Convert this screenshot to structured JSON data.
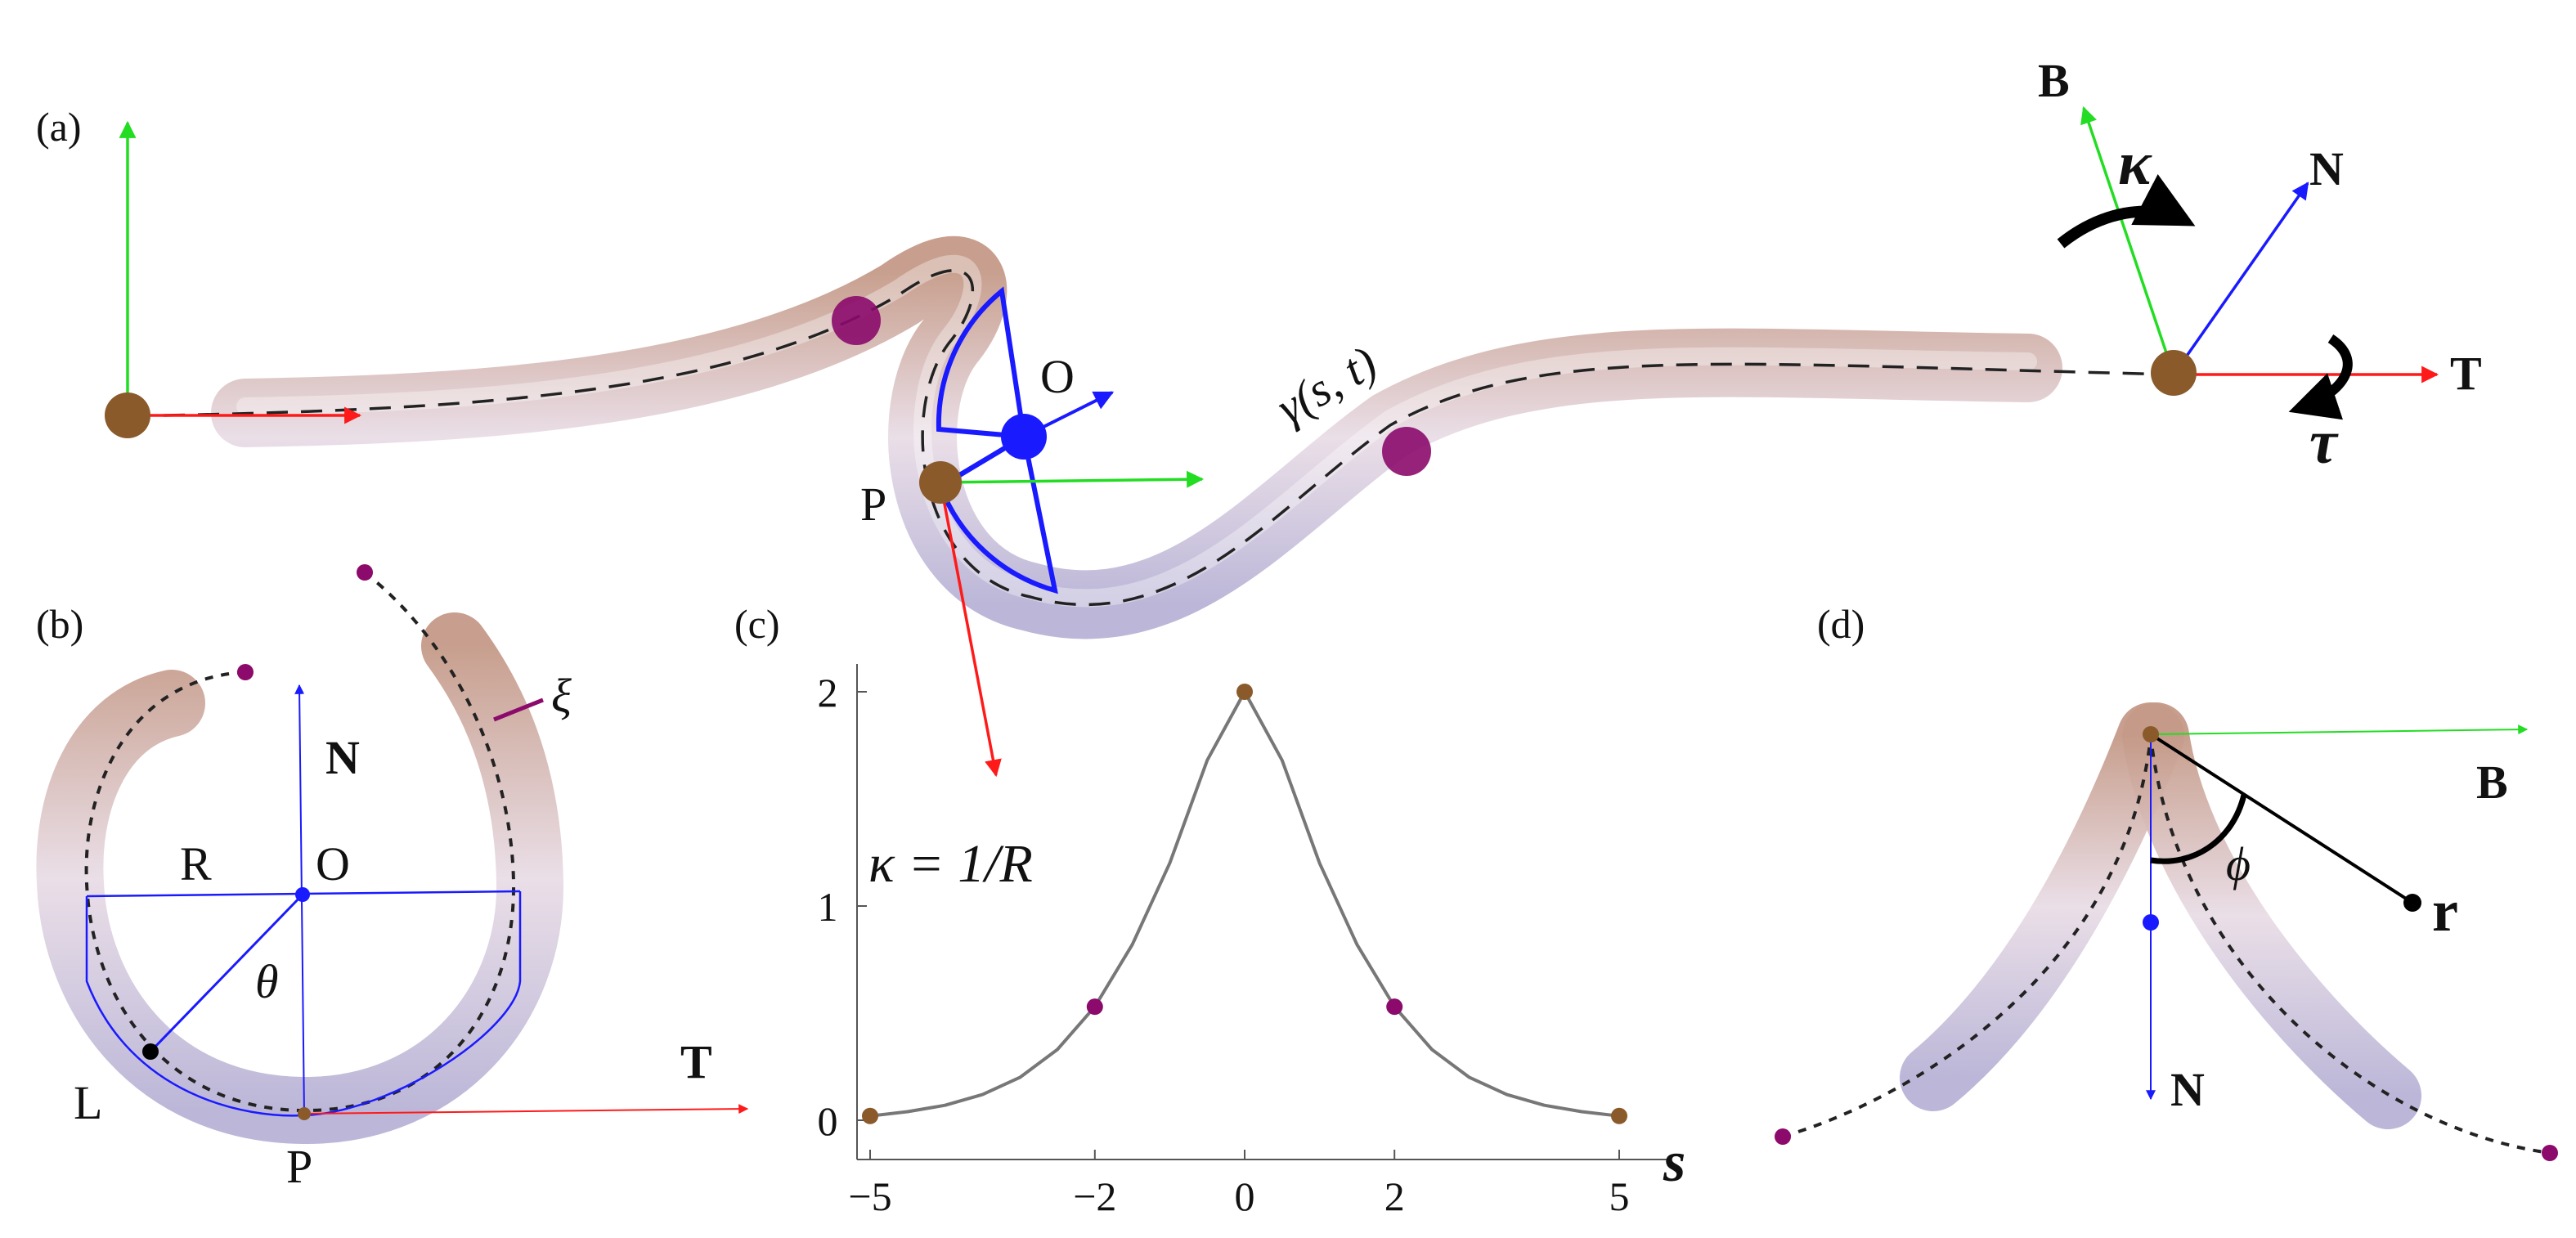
{
  "panel_labels": {
    "a": "(a)",
    "b": "(b)",
    "c": "(c)",
    "d": "(d)"
  },
  "panel_a": {
    "curve_label": "γ(s, t)",
    "point_P": "P",
    "point_O": "O",
    "frame_T": "T",
    "frame_N": "N",
    "frame_B": "B",
    "curvature": "κ",
    "torsion": "τ"
  },
  "panel_b": {
    "N": "N",
    "T": "T",
    "R": "R",
    "O": "O",
    "theta": "θ",
    "L": "L",
    "P": "P",
    "xi": "ξ"
  },
  "panel_c": {
    "equation": "κ = 1/R",
    "xlabel": "s"
  },
  "panel_d": {
    "B": "B",
    "N": "N",
    "phi": "ϕ",
    "r": "r"
  },
  "colors": {
    "tangent": "#ff1a1a",
    "normal": "#1a1aff",
    "binormal": "#22dd22",
    "bead": "#8b0a6b",
    "endpoint": "#8a5a2b"
  },
  "chart_data": {
    "type": "line",
    "xlabel": "s",
    "ylabel": "",
    "title": "",
    "xlim": [
      -5,
      5
    ],
    "ylim": [
      0,
      2
    ],
    "xticks": [
      -5,
      -2,
      0,
      2,
      5
    ],
    "yticks": [
      0,
      1,
      2
    ],
    "series": [
      {
        "x": [
          -5,
          -4.5,
          -4,
          -3.5,
          -3,
          -2.5,
          -2,
          -1.5,
          -1,
          -0.5,
          0,
          0.5,
          1,
          1.5,
          2,
          2.5,
          3,
          3.5,
          4,
          4.5,
          5
        ],
        "y": [
          0.02,
          0.04,
          0.07,
          0.12,
          0.2,
          0.33,
          0.53,
          0.82,
          1.2,
          1.68,
          2.0,
          1.68,
          1.2,
          0.82,
          0.53,
          0.33,
          0.2,
          0.12,
          0.07,
          0.04,
          0.02
        ]
      }
    ],
    "markers": [
      {
        "x": -5,
        "y": 0.02,
        "color": "#8a5a2b"
      },
      {
        "x": -2,
        "y": 0.53,
        "color": "#8b0a6b"
      },
      {
        "x": 0,
        "y": 2.0,
        "color": "#8a5a2b"
      },
      {
        "x": 2,
        "y": 0.53,
        "color": "#8b0a6b"
      },
      {
        "x": 5,
        "y": 0.02,
        "color": "#8a5a2b"
      }
    ]
  }
}
